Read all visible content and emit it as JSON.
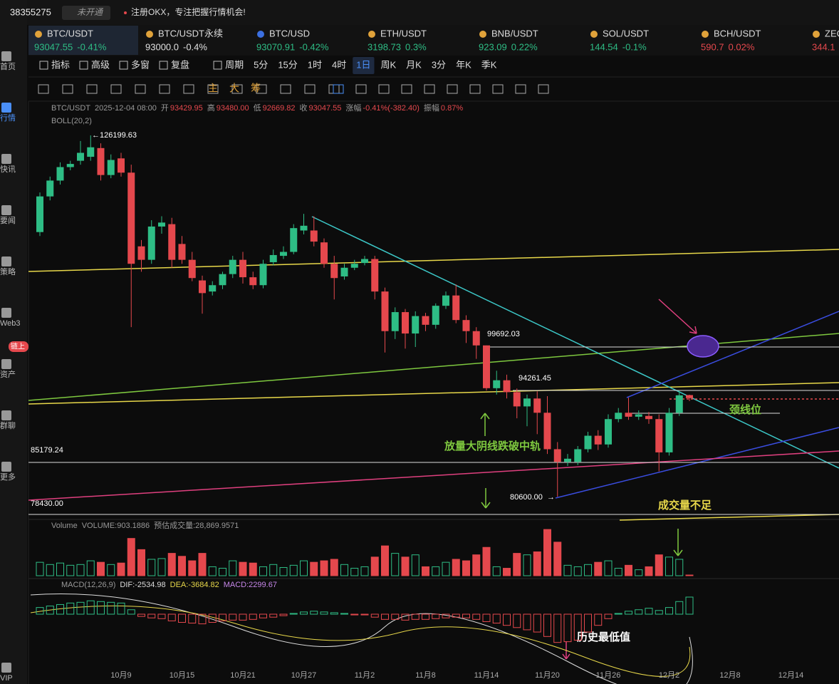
{
  "header": {
    "account": "38355275",
    "badge": "未开通",
    "notice": "注册OKX，专注把握行情机会!"
  },
  "tabs": [
    {
      "name": "BTC/USDT",
      "price": "93047.55",
      "change": "-0.41%",
      "color": "#2ebd85"
    },
    {
      "name": "BTC/USDT永续",
      "price": "93000.0",
      "change": "-0.4%",
      "color": "#e0e0e0"
    },
    {
      "name": "BTC/USD",
      "price": "93070.91",
      "change": "-0.42%",
      "color": "#2ebd85"
    },
    {
      "name": "ETH/USDT",
      "price": "3198.73",
      "change": "0.3%",
      "color": "#2ebd85"
    },
    {
      "name": "BNB/USDT",
      "price": "923.09",
      "change": "0.22%",
      "color": "#2ebd85"
    },
    {
      "name": "SOL/USDT",
      "price": "144.54",
      "change": "-0.1%",
      "color": "#2ebd85"
    },
    {
      "name": "BCH/USDT",
      "price": "590.7",
      "change": "0.02%",
      "color": "#e5484d"
    },
    {
      "name": "ZEC",
      "price": "344.1",
      "change": "",
      "color": "#e5484d"
    }
  ],
  "toolbar": {
    "tools": [
      "指标",
      "高级",
      "多窗",
      "复盘",
      "周期"
    ],
    "periods": [
      "5分",
      "15分",
      "1时",
      "4时",
      "1日",
      "周K",
      "月K",
      "3分",
      "年K",
      "季K"
    ],
    "active": "1日",
    "draw": [
      "主",
      "大",
      "筹"
    ]
  },
  "sidebar": [
    "首页",
    "行情",
    "快讯",
    "要闻",
    "策略",
    "Web3",
    "资产",
    "群聊",
    "更多",
    "VIP"
  ],
  "sidebar_badge": "链上",
  "info": {
    "symbol": "BTC/USDT",
    "time": "2025-12-04 08:00",
    "open_label": "开",
    "open": "93429.95",
    "high_label": "高",
    "high": "93480.00",
    "low_label": "低",
    "low": "92669.82",
    "close_label": "收",
    "close": "93047.55",
    "change_label": "涨幅",
    "change": "-0.41%(-382.40)",
    "amp_label": "振幅",
    "amp": "0.87%",
    "indicator": "BOLL(20,2)"
  },
  "annotations": {
    "ath": "126199.63",
    "level1": "99692.03",
    "level2": "94261.45",
    "level3": "85179.24",
    "level4": "78430.00",
    "low": "80600.00",
    "neckline": "颈线位",
    "breakdown": "放量大阴线跌破中轨",
    "weak_volume": "成交量不足",
    "history_low": "历史最低值"
  },
  "chart_data": {
    "type": "candlestick",
    "up_color": "#2ebd85",
    "down_color": "#e5484d",
    "xlim": [
      -0.2,
      78
    ],
    "ylim": [
      78100,
      128900
    ],
    "xticks": [
      {
        "value": 8,
        "label": "10月9"
      },
      {
        "value": 14,
        "label": "10月15"
      },
      {
        "value": 20,
        "label": "10月21"
      },
      {
        "value": 26,
        "label": "10月27"
      },
      {
        "value": 32,
        "label": "11月2"
      },
      {
        "value": 38,
        "label": "11月8"
      },
      {
        "value": 44,
        "label": "11月14"
      },
      {
        "value": 50,
        "label": "11月20"
      },
      {
        "value": 56,
        "label": "11月26"
      },
      {
        "value": 62,
        "label": "12月2"
      },
      {
        "value": 68,
        "label": "12月8"
      },
      {
        "value": 74,
        "label": "12月14"
      }
    ],
    "open": [
      114000,
      118500,
      120500,
      122200,
      123000,
      123500,
      124600,
      121200,
      123300,
      121500,
      112200,
      110500,
      114700,
      115000,
      112500,
      110500,
      107900,
      106500,
      107300,
      108700,
      110500,
      108300,
      107300,
      110200,
      111000,
      111500,
      114200,
      114200,
      112700,
      110000,
      108400,
      109500,
      110100,
      110600,
      106500,
      101500,
      103900,
      101200,
      103400,
      102300,
      104700,
      106000,
      102900,
      101500,
      99700,
      94300,
      95300,
      93800,
      92000,
      93000,
      91200,
      86600,
      85000,
      85000,
      86600,
      88300,
      87200,
      90400,
      91200,
      90700,
      90800,
      90400,
      86200,
      91200,
      93429.95
    ],
    "high": [
      119000,
      121000,
      122800,
      123000,
      125500,
      126199.63,
      125200,
      123800,
      124000,
      122500,
      113000,
      115500,
      116000,
      115800,
      113500,
      111500,
      108500,
      107800,
      109000,
      111000,
      111500,
      109000,
      110500,
      111800,
      112200,
      115000,
      116300,
      116000,
      113200,
      111000,
      110000,
      110500,
      111000,
      111000,
      107000,
      104500,
      104300,
      104000,
      103800,
      105000,
      106500,
      107400,
      103500,
      102000,
      99692.03,
      96500,
      96000,
      94261.45,
      93500,
      93900,
      93300,
      87500,
      86000,
      87000,
      88800,
      89000,
      91000,
      91800,
      93100,
      91500,
      91300,
      91000,
      91800,
      94000,
      93480
    ],
    "low": [
      113500,
      118000,
      120000,
      121800,
      122500,
      123000,
      120500,
      120800,
      121000,
      102000,
      109000,
      110000,
      113800,
      109500,
      110000,
      107800,
      103700,
      106000,
      106800,
      108200,
      107500,
      106800,
      106900,
      109800,
      110600,
      111200,
      113700,
      112200,
      109500,
      105500,
      108000,
      109200,
      109800,
      105500,
      98800,
      100500,
      99300,
      99500,
      101500,
      101800,
      104300,
      102500,
      100000,
      98000,
      94000,
      93500,
      93000,
      90500,
      89500,
      88500,
      86000,
      80600,
      84500,
      84600,
      86200,
      86500,
      86800,
      90000,
      90300,
      90300,
      89800,
      83800,
      85800,
      90800,
      92669.82
    ],
    "close": [
      118500,
      120500,
      122200,
      122600,
      124000,
      124700,
      121200,
      123100,
      121500,
      110000,
      110500,
      114700,
      115200,
      110500,
      110500,
      108200,
      106300,
      107300,
      108700,
      110500,
      108300,
      107300,
      110000,
      111100,
      111500,
      114500,
      114800,
      112800,
      110000,
      108200,
      109500,
      110000,
      110600,
      106500,
      101500,
      103900,
      101200,
      103400,
      102300,
      104700,
      106000,
      102900,
      101500,
      99700,
      94300,
      95300,
      93800,
      92000,
      93000,
      91200,
      86600,
      85000,
      85400,
      86600,
      88300,
      87200,
      90400,
      91200,
      90700,
      91000,
      90400,
      86200,
      91200,
      93400,
      93047.55
    ],
    "volume": {
      "label": "Volume",
      "text": "VOLUME:903.1886",
      "estimate": "预估成交量:28,869.9571",
      "ylim": [
        0,
        65000
      ],
      "values": [
        18000,
        15000,
        17000,
        14000,
        15000,
        20000,
        18000,
        15000,
        17000,
        50000,
        35000,
        22000,
        23000,
        30000,
        26000,
        20000,
        30000,
        12000,
        10000,
        20000,
        18000,
        17000,
        12000,
        15000,
        11000,
        14000,
        20000,
        18000,
        20000,
        22000,
        15000,
        10000,
        12000,
        25000,
        40000,
        30000,
        25000,
        28000,
        12000,
        12000,
        18000,
        22000,
        20000,
        28000,
        38000,
        12000,
        10000,
        30000,
        28000,
        32000,
        62000,
        45000,
        14000,
        12000,
        15000,
        18000,
        20000,
        10000,
        14000,
        8000,
        12000,
        28000,
        25000,
        22000,
        903.1886
      ]
    },
    "macd": {
      "label": "MACD(12,26,9)",
      "dif": "DIF:-2534.98",
      "dea": "DEA:-3684.82",
      "macd": "MACD:2299.67",
      "ylim": [
        -9200,
        3260
      ],
      "values": [
        900,
        1100,
        1300,
        1500,
        1600,
        1800,
        1700,
        1600,
        1500,
        600,
        -300,
        -500,
        -600,
        -900,
        -1100,
        -1200,
        -1300,
        -1100,
        -900,
        -800,
        -800,
        -700,
        -500,
        -400,
        -200,
        100,
        300,
        400,
        300,
        200,
        100,
        -100,
        -100,
        -400,
        -700,
        -700,
        -800,
        -700,
        -700,
        -600,
        -500,
        -400,
        -500,
        -700,
        -1000,
        -1200,
        -1500,
        -1800,
        -2100,
        -2400,
        -3000,
        -3800,
        -3700,
        -3500,
        -2400,
        -1500,
        -600,
        100,
        400,
        600,
        800,
        500,
        900,
        1700,
        2299.67
      ]
    }
  }
}
